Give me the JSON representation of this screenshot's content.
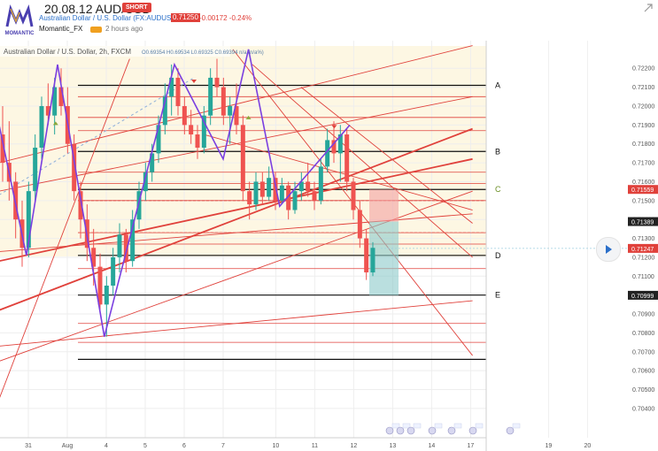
{
  "header": {
    "title": "20.08.12 AUD/USD",
    "badge": "SHORT",
    "symbol": "Australian Dollar / U.S. Dollar (FX:AUDUSD)",
    "price": "0.71250",
    "change": "-0.00172 -0.24%",
    "author": "Momantic_FX",
    "time_ago": "2 hours ago",
    "logo_text": "MOMANTIC"
  },
  "chart_data": {
    "type": "candlestick",
    "title": "Australian Dollar / U.S. Dollar, 2h, FXCM",
    "instrument": "Australian Dollar / U.S. Dollar",
    "interval": "2h",
    "source": "FXCM",
    "ohlc_text": "O0.69354 H0.69534 L0.69325 C0.69394 n/a (n/a%)",
    "ylim": [
      0.7032,
      0.7229
    ],
    "y_ticks": [
      "0.72200",
      "0.72100",
      "0.72000",
      "0.71900",
      "0.71800",
      "0.71700",
      "0.71600",
      "0.71500",
      "0.71400",
      "0.71300",
      "0.71200",
      "0.71100",
      "0.71000",
      "0.70900",
      "0.70800",
      "0.70700",
      "0.70600",
      "0.70500",
      "0.70400"
    ],
    "x_ticks": [
      {
        "label": "31",
        "i": 1.5
      },
      {
        "label": "Aug",
        "i": 3.5
      },
      {
        "label": "4",
        "i": 5.5
      },
      {
        "label": "5",
        "i": 7.5
      },
      {
        "label": "6",
        "i": 9.5
      },
      {
        "label": "7",
        "i": 11.5
      },
      {
        "label": "10",
        "i": 14.2
      },
      {
        "label": "11",
        "i": 16.2
      },
      {
        "label": "12",
        "i": 18.2
      },
      {
        "label": "13",
        "i": 20.2
      },
      {
        "label": "14",
        "i": 22.2
      },
      {
        "label": "17",
        "i": 24.2
      },
      {
        "label": "19",
        "i": 28.2
      },
      {
        "label": "20",
        "i": 30.2
      }
    ],
    "price_tags": [
      {
        "value": 0.71559,
        "text": "0.71559",
        "color": "#e0413b"
      },
      {
        "value": 0.71389,
        "text": "0.71389",
        "color": "#222222"
      },
      {
        "value": 0.71247,
        "text": "0.71247",
        "color": "#e0413b"
      },
      {
        "value": 0.70999,
        "text": "0.70999",
        "color": "#222222"
      }
    ],
    "levels_black": [
      {
        "value": 0.7211,
        "label": "A"
      },
      {
        "value": 0.7176,
        "label": "B"
      },
      {
        "value": 0.71559,
        "label": "C"
      },
      {
        "value": 0.7121,
        "label": "D"
      },
      {
        "value": 0.71,
        "label": "E"
      },
      {
        "value": 0.7066,
        "label": ""
      }
    ],
    "levels_red": [
      0.7205,
      0.7194,
      0.7187,
      0.7165,
      0.7159,
      0.715,
      0.7133,
      0.7127,
      0.7114,
      0.7085,
      0.7075
    ],
    "candles": [
      [
        0.7185,
        0.72,
        0.716,
        0.717
      ],
      [
        0.717,
        0.7192,
        0.715,
        0.716
      ],
      [
        0.716,
        0.7165,
        0.713,
        0.714
      ],
      [
        0.714,
        0.715,
        0.7115,
        0.7125
      ],
      [
        0.7125,
        0.716,
        0.712,
        0.7155
      ],
      [
        0.7155,
        0.7185,
        0.715,
        0.7178
      ],
      [
        0.7178,
        0.7205,
        0.7172,
        0.72
      ],
      [
        0.72,
        0.7212,
        0.719,
        0.7195
      ],
      [
        0.7195,
        0.7215,
        0.7185,
        0.721
      ],
      [
        0.721,
        0.722,
        0.7195,
        0.72
      ],
      [
        0.72,
        0.721,
        0.7175,
        0.718
      ],
      [
        0.718,
        0.7185,
        0.715,
        0.7155
      ],
      [
        0.7155,
        0.716,
        0.713,
        0.714
      ],
      [
        0.714,
        0.7148,
        0.7118,
        0.7125
      ],
      [
        0.7125,
        0.7135,
        0.7105,
        0.7115
      ],
      [
        0.7115,
        0.7122,
        0.709,
        0.7095
      ],
      [
        0.7095,
        0.711,
        0.7078,
        0.7105
      ],
      [
        0.7105,
        0.7125,
        0.71,
        0.712
      ],
      [
        0.712,
        0.7138,
        0.7112,
        0.7132
      ],
      [
        0.7132,
        0.7135,
        0.7112,
        0.7118
      ],
      [
        0.7118,
        0.7145,
        0.7115,
        0.714
      ],
      [
        0.714,
        0.716,
        0.7135,
        0.7155
      ],
      [
        0.7155,
        0.717,
        0.715,
        0.7165
      ],
      [
        0.7165,
        0.718,
        0.716,
        0.7175
      ],
      [
        0.7175,
        0.7195,
        0.717,
        0.719
      ],
      [
        0.719,
        0.7212,
        0.7185,
        0.7205
      ],
      [
        0.7205,
        0.7222,
        0.7195,
        0.7215
      ],
      [
        0.7215,
        0.722,
        0.7195,
        0.72
      ],
      [
        0.72,
        0.7205,
        0.7185,
        0.719
      ],
      [
        0.719,
        0.7198,
        0.718,
        0.7185
      ],
      [
        0.7185,
        0.719,
        0.7172,
        0.7178
      ],
      [
        0.7178,
        0.72,
        0.7175,
        0.7195
      ],
      [
        0.7195,
        0.722,
        0.719,
        0.7215
      ],
      [
        0.7215,
        0.7225,
        0.7205,
        0.721
      ],
      [
        0.721,
        0.7215,
        0.719,
        0.7195
      ],
      [
        0.7195,
        0.7205,
        0.718,
        0.72
      ],
      [
        0.72,
        0.7212,
        0.7185,
        0.719
      ],
      [
        0.719,
        0.7195,
        0.715,
        0.7155
      ],
      [
        0.7155,
        0.716,
        0.714,
        0.7148
      ],
      [
        0.7148,
        0.7165,
        0.7145,
        0.716
      ],
      [
        0.716,
        0.7165,
        0.7148,
        0.7152
      ],
      [
        0.7152,
        0.7168,
        0.715,
        0.7162
      ],
      [
        0.7162,
        0.7165,
        0.7145,
        0.715
      ],
      [
        0.715,
        0.7162,
        0.7148,
        0.7158
      ],
      [
        0.7158,
        0.716,
        0.714,
        0.7145
      ],
      [
        0.7145,
        0.716,
        0.7143,
        0.7155
      ],
      [
        0.7155,
        0.7165,
        0.715,
        0.716
      ],
      [
        0.716,
        0.717,
        0.7152,
        0.7155
      ],
      [
        0.7155,
        0.716,
        0.7145,
        0.715
      ],
      [
        0.715,
        0.7172,
        0.7148,
        0.7168
      ],
      [
        0.7168,
        0.7188,
        0.7165,
        0.7182
      ],
      [
        0.7182,
        0.7192,
        0.717,
        0.7175
      ],
      [
        0.7175,
        0.719,
        0.716,
        0.7185
      ],
      [
        0.7185,
        0.7188,
        0.7155,
        0.716
      ],
      [
        0.716,
        0.7162,
        0.714,
        0.7145
      ],
      [
        0.7145,
        0.715,
        0.7125,
        0.713
      ],
      [
        0.713,
        0.7135,
        0.7108,
        0.7112
      ],
      [
        0.7112,
        0.7128,
        0.711,
        0.7125
      ]
    ],
    "zigzag": [
      [
        0,
        0.719
      ],
      [
        1.4,
        0.7121
      ],
      [
        3.0,
        0.7222
      ],
      [
        5.4,
        0.7078
      ],
      [
        9.0,
        0.7222
      ],
      [
        11.5,
        0.7172
      ],
      [
        12.8,
        0.723
      ],
      [
        14.4,
        0.7147
      ],
      [
        18.0,
        0.719
      ]
    ],
    "dotted_line": [
      [
        0,
        0.7153
      ],
      [
        10,
        0.7215
      ]
    ],
    "trendlines_thick": [
      [
        [
          0,
          0.7092
        ],
        [
          24.3,
          0.7188
        ]
      ],
      [
        [
          0,
          0.7118
        ],
        [
          24.3,
          0.7172
        ]
      ]
    ],
    "trendlines_thin": [
      [
        [
          0,
          0.717
        ],
        [
          24.3,
          0.7232
        ]
      ],
      [
        [
          0,
          0.7155
        ],
        [
          24.3,
          0.7205
        ]
      ],
      [
        [
          0,
          0.7123
        ],
        [
          24.3,
          0.7143
        ]
      ],
      [
        [
          0,
          0.7073
        ],
        [
          24.3,
          0.7097
        ]
      ],
      [
        [
          0,
          0.7065
        ],
        [
          24.3,
          0.7155
        ]
      ],
      [
        [
          0,
          0.7045
        ],
        [
          6.7,
          0.7225
        ]
      ],
      [
        [
          13.0,
          0.7222
        ],
        [
          24.3,
          0.712
        ]
      ],
      [
        [
          12.0,
          0.723
        ],
        [
          24.3,
          0.7068
        ]
      ],
      [
        [
          15.5,
          0.721
        ],
        [
          24.3,
          0.7138
        ]
      ],
      [
        [
          10.5,
          0.7185
        ],
        [
          24.3,
          0.7145
        ]
      ]
    ],
    "position": {
      "x_start": 19.0,
      "x_end": 20.5,
      "entry": 0.71389,
      "stop": 0.71559,
      "target": 0.70999
    },
    "markers_down": [
      [
        10.0,
        0.7214
      ],
      [
        17.2,
        0.719
      ]
    ],
    "markers_up": [
      [
        2.9,
        0.719
      ],
      [
        12.8,
        0.7193
      ]
    ]
  }
}
